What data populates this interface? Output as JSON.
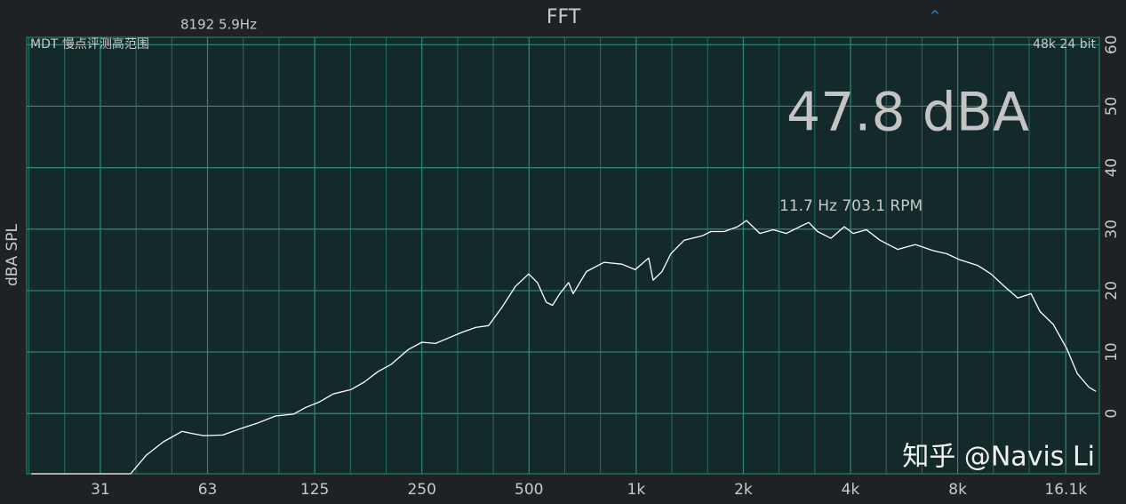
{
  "chart_data": {
    "type": "line",
    "title": "FFT",
    "fft_info": "8192  5.9Hz",
    "device": "MDT 慢点评测高范围",
    "format": "48k 24 bit",
    "level": "47.8 dBA",
    "peak_label": "11.7 Hz 703.1 RPM",
    "ylabel": "dBA SPL",
    "marker": "^",
    "watermark": "知乎 @Navis Li",
    "xscale": "log",
    "grid": true,
    "color": "#ffffff",
    "xlim": [
      19.4,
      20000
    ],
    "ylim": [
      -9.8,
      61.2
    ],
    "xticks": [
      {
        "value": 31.25,
        "label": "31"
      },
      {
        "value": 62.5,
        "label": "63"
      },
      125,
      250,
      500,
      {
        "value": 1000,
        "label": "1k"
      },
      {
        "value": 2000,
        "label": "2k"
      },
      {
        "value": 4000,
        "label": "4k"
      },
      {
        "value": 8000,
        "label": "8k"
      },
      {
        "value": 16100,
        "label": "16.1k"
      }
    ],
    "yticks": [
      0,
      10,
      20,
      30,
      40,
      50,
      60
    ],
    "x": [
      20,
      38,
      42,
      47,
      53,
      56,
      61,
      69,
      77,
      86,
      97,
      109,
      118,
      129,
      141,
      158,
      172,
      188,
      205,
      229,
      250,
      273,
      297,
      324,
      354,
      385,
      420,
      458,
      499,
      528,
      559,
      582,
      610,
      646,
      665,
      725,
      813,
      912,
      994,
      1084,
      1116,
      1182,
      1252,
      1364,
      1531,
      1621,
      1768,
      1927,
      2041,
      2225,
      2425,
      2643,
      2882,
      3052,
      3233,
      3523,
      3842,
      4070,
      4435,
      4837,
      5426,
      6088,
      6830,
      7445,
      8117,
      9107,
      9925,
      10820,
      11800,
      12860,
      13620,
      14850,
      16190,
      17340,
      18690,
      19560
    ],
    "values": [
      -9.8,
      -9.8,
      -6.8,
      -4.6,
      -2.9,
      -3.2,
      -3.6,
      -3.5,
      -2.5,
      -1.6,
      -0.4,
      -0.1,
      1.0,
      1.9,
      3.2,
      3.9,
      5.1,
      6.8,
      8.0,
      10.4,
      11.6,
      11.4,
      12.3,
      13.2,
      14.0,
      14.3,
      17.3,
      20.7,
      22.7,
      21.3,
      18.1,
      17.6,
      19.5,
      21.3,
      19.5,
      23.1,
      24.6,
      24.3,
      23.4,
      25.3,
      21.7,
      23.1,
      26.0,
      28.2,
      28.9,
      29.6,
      29.6,
      30.4,
      31.4,
      29.3,
      29.9,
      29.3,
      30.4,
      31.1,
      29.6,
      28.5,
      30.4,
      29.3,
      29.9,
      28.2,
      26.7,
      27.5,
      26.5,
      26.0,
      25.0,
      24.1,
      22.7,
      20.7,
      18.8,
      19.5,
      16.6,
      14.5,
      10.6,
      6.5,
      4.3,
      3.6
    ]
  }
}
